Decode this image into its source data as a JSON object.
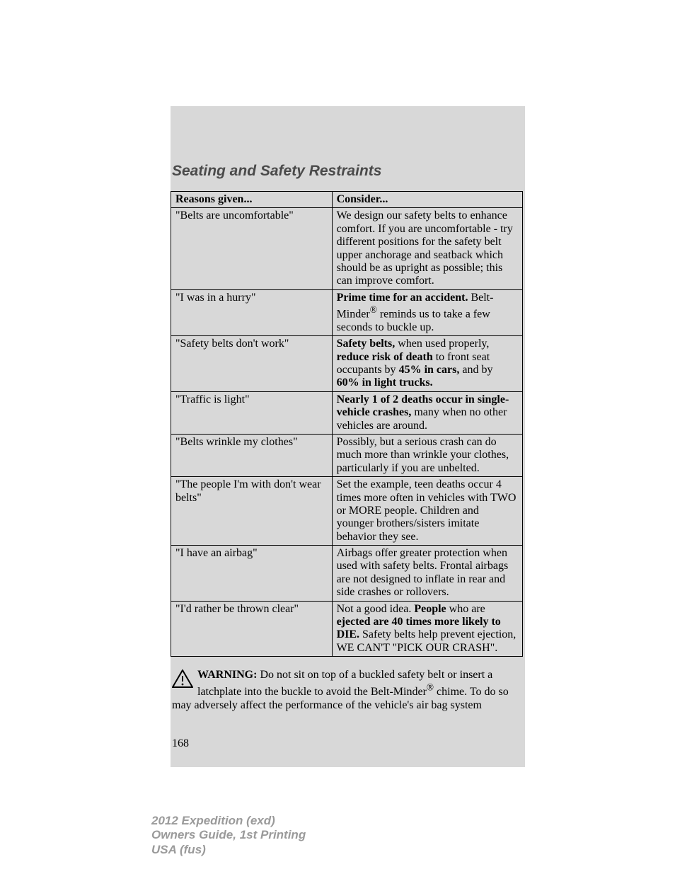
{
  "section_title": "Seating and Safety Restraints",
  "table": {
    "header": {
      "col1": "Reasons given...",
      "col2": "Consider..."
    },
    "rows": [
      {
        "reason": "\"Belts are uncomfortable\"",
        "consider_html": "We design our safety belts to enhance comfort. If you are uncomfortable - try different positions for the safety belt upper anchorage and seatback which should be as upright as possible; this can improve comfort."
      },
      {
        "reason": "\"I was in a hurry\"",
        "consider_html": "<span class=\"bold\">Prime time for an accident.</span> Belt-Minder<sup>®</sup> reminds us to take a few seconds to buckle up."
      },
      {
        "reason": "\"Safety belts don't work\"",
        "consider_html": "<span class=\"bold\">Safety belts,</span> when used properly, <span class=\"bold\">reduce risk of death</span> to front seat occupants by <span class=\"bold\">45% in cars,</span> and by <span class=\"bold\">60% in light trucks.</span>"
      },
      {
        "reason": "\"Traffic is light\"",
        "consider_html": "<span class=\"bold\">Nearly 1 of 2 deaths occur in single-vehicle crashes,</span> many when no other vehicles are around."
      },
      {
        "reason": "\"Belts wrinkle my clothes\"",
        "consider_html": "Possibly, but a serious crash can do much more than wrinkle your clothes, particularly if you are unbelted."
      },
      {
        "reason": "\"The people I'm with don't wear belts\"",
        "consider_html": "Set the example, teen deaths occur 4 times more often in vehicles with TWO or MORE people. Children and younger brothers/sisters imitate behavior they see."
      },
      {
        "reason": "\"I have an airbag\"",
        "consider_html": "Airbags offer greater protection when used with safety belts. Frontal airbags are not designed to inflate in rear and side crashes or rollovers."
      },
      {
        "reason": "\"I'd rather be thrown clear\"",
        "consider_html": "Not a good idea. <span class=\"bold\">People</span> who are <span class=\"bold\">ejected are 40 times more likely to DIE.</span> Safety belts help prevent ejection, WE CAN'T \"PICK OUR CRASH\"."
      }
    ]
  },
  "warning": {
    "label": "WARNING:",
    "text_html": " Do not sit on top of a buckled safety belt or insert a latchplate into the buckle to avoid the Belt-Minder<sup>®</sup> chime. To do so may adversely affect the performance of the vehicle's air bag system"
  },
  "page_number": "168",
  "footer": {
    "line1_bold": "2012 Expedition",
    "line1_light": " (exd)",
    "line2": "Owners Guide, 1st Printing",
    "line3_bold": "USA",
    "line3_light": " (fus)"
  },
  "colors": {
    "gray_box": "#d8d8d8",
    "title_gray": "#4a4a4a",
    "footer_gray": "#9a9a9a",
    "border": "#000000"
  }
}
